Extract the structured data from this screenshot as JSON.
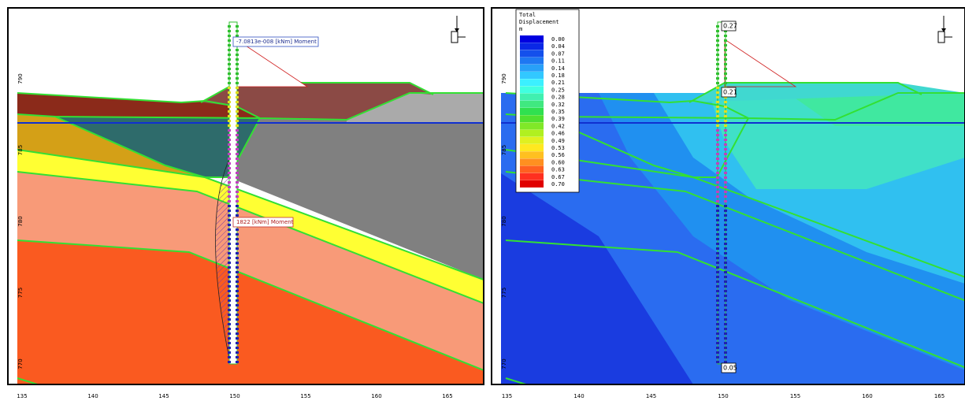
{
  "left_panel": {
    "x_ticks": [
      135,
      140,
      145,
      150,
      155,
      160,
      165
    ],
    "y_ticks": [
      790,
      785,
      780,
      775,
      770
    ],
    "annotations": [
      "-7.0813e-008 [kNm] Moment",
      "1822 [kNm] Moment"
    ]
  },
  "right_panel": {
    "legend": {
      "title_lines": [
        "Total",
        "Displacement"
      ],
      "unit": "m",
      "items": [
        {
          "label": "0.00",
          "color": "#0000e0"
        },
        {
          "label": "0.04",
          "color": "#0a28e6"
        },
        {
          "label": "0.07",
          "color": "#1450ec"
        },
        {
          "label": "0.11",
          "color": "#1e78f2"
        },
        {
          "label": "0.14",
          "color": "#28a0f8"
        },
        {
          "label": "0.18",
          "color": "#32c8ff"
        },
        {
          "label": "0.21",
          "color": "#3cf0ff"
        },
        {
          "label": "0.25",
          "color": "#40ffe0"
        },
        {
          "label": "0.28",
          "color": "#40f0b0"
        },
        {
          "label": "0.32",
          "color": "#40e880"
        },
        {
          "label": "0.35",
          "color": "#30e050"
        },
        {
          "label": "0.39",
          "color": "#50e030"
        },
        {
          "label": "0.42",
          "color": "#80e828"
        },
        {
          "label": "0.46",
          "color": "#b0f020"
        },
        {
          "label": "0.49",
          "color": "#e0f020"
        },
        {
          "label": "0.53",
          "color": "#ffe820"
        },
        {
          "label": "0.56",
          "color": "#ffc020"
        },
        {
          "label": "0.60",
          "color": "#ff9020"
        },
        {
          "label": "0.63",
          "color": "#ff6020"
        },
        {
          "label": "0.67",
          "color": "#ff3020"
        },
        {
          "label": "0.70",
          "color": "#e00000"
        }
      ]
    },
    "value_labels": [
      "0.27",
      "0.21",
      "0.05"
    ],
    "x_ticks": [
      135,
      140,
      145,
      150,
      155,
      160,
      165
    ],
    "y_ticks": [
      790,
      785,
      780,
      775,
      770
    ]
  }
}
